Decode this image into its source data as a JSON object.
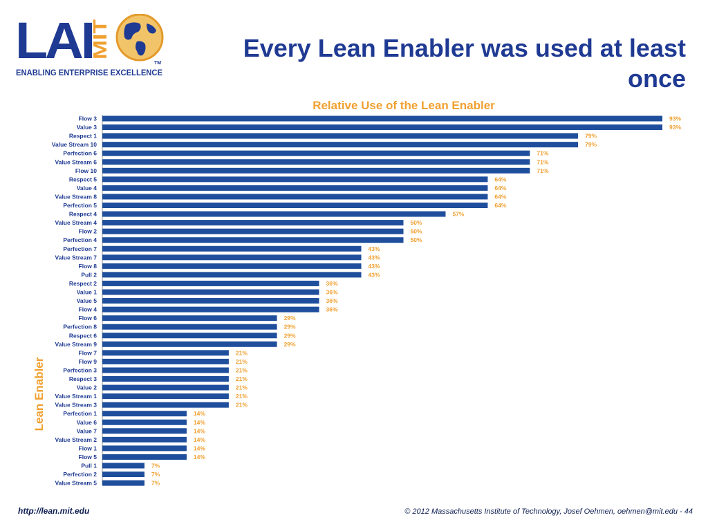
{
  "slide": {
    "title": "Every Lean Enabler was used at least once",
    "logo": {
      "letters": "LAI",
      "vertical": "MIT",
      "tagline": "ENABLING ENTERPRISE EXCELLENCE",
      "tm": "TM"
    },
    "footer": {
      "url": "http://lean.mit.edu",
      "copyright": "© 2012 Massachusetts Institute of Technology, Josef Oehmen, oehmen@mit.edu - 44"
    }
  },
  "chart_data": {
    "type": "bar",
    "orientation": "horizontal",
    "title": "Relative Use of the Lean Enabler",
    "ylabel": "Lean Enabler",
    "xlabel": "",
    "xlim": [
      0,
      100
    ],
    "value_format": "percent",
    "colors": {
      "bar": "#1f4e9c",
      "label": "#f0a030",
      "category": "#1f3a93",
      "axis": "#808080"
    },
    "categories": [
      "Flow 3",
      "Value 3",
      "Respect 1",
      "Value Stream 10",
      "Perfection 6",
      "Value Stream 6",
      "Flow 10",
      "Respect 5",
      "Value 4",
      "Value Stream 8",
      "Perfection 5",
      "Respect 4",
      "Value Stream 4",
      "Flow 2",
      "Perfection 4",
      "Perfection 7",
      "Value Stream 7",
      "Flow 8",
      "Pull 2",
      "Respect 2",
      "Value 1",
      "Value 5",
      "Flow 4",
      "Flow 6",
      "Perfection 8",
      "Respect 6",
      "Value Stream 9",
      "Flow 7",
      "Flow 9",
      "Perfection 3",
      "Respect 3",
      "Value 2",
      "Value Stream 1",
      "Value Stream 3",
      "Perfection 1",
      "Value 6",
      "Value 7",
      "Value Stream 2",
      "Flow 1",
      "Flow 5",
      "Pull 1",
      "Perfection 2",
      "Value Stream 5"
    ],
    "values": [
      93,
      93,
      79,
      79,
      71,
      71,
      71,
      64,
      64,
      64,
      64,
      57,
      50,
      50,
      50,
      43,
      43,
      43,
      43,
      36,
      36,
      36,
      36,
      29,
      29,
      29,
      29,
      21,
      21,
      21,
      21,
      21,
      21,
      21,
      14,
      14,
      14,
      14,
      14,
      14,
      7,
      7,
      7
    ],
    "labels": [
      "93%",
      "93%",
      "79%",
      "79%",
      "71%",
      "71%",
      "71%",
      "64%",
      "64%",
      "64%",
      "64%",
      "57%",
      "50%",
      "50%",
      "50%",
      "43%",
      "43%",
      "43%",
      "43%",
      "36%",
      "36%",
      "36%",
      "36%",
      "29%",
      "29%",
      "29%",
      "29%",
      "21%",
      "21%",
      "21%",
      "21%",
      "21%",
      "21%",
      "21%",
      "14%",
      "14%",
      "14%",
      "14%",
      "14%",
      "14%",
      "7%",
      "7%",
      "7%"
    ]
  }
}
